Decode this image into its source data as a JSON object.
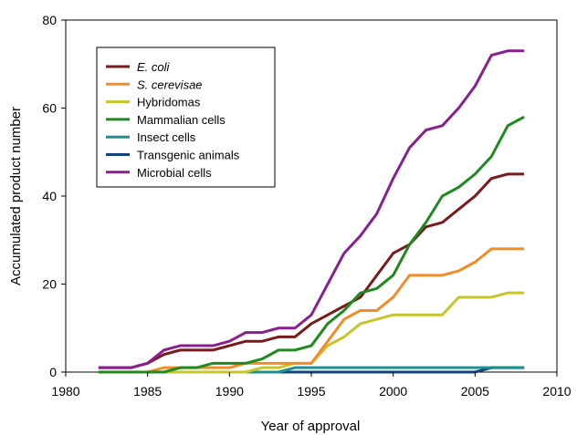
{
  "chart_data": {
    "type": "line",
    "title": "",
    "xlabel": "Year of approval",
    "ylabel": "Accumulated product number",
    "xlim": [
      1980,
      2010
    ],
    "ylim": [
      0,
      80
    ],
    "xticks": [
      "1980",
      "1985",
      "1990",
      "1995",
      "2000",
      "2005",
      "2010"
    ],
    "yticks": [
      "0",
      "20",
      "40",
      "60",
      "80"
    ],
    "grid": false,
    "legend_position": "top-left",
    "x": [
      1982,
      1983,
      1984,
      1985,
      1986,
      1987,
      1988,
      1989,
      1990,
      1991,
      1992,
      1993,
      1994,
      1995,
      1996,
      1997,
      1998,
      1999,
      2000,
      2001,
      2002,
      2003,
      2004,
      2005,
      2006,
      2007,
      2008
    ],
    "series": [
      {
        "name": "E. coli",
        "italic": true,
        "color": "#7b1a1a",
        "values": [
          1,
          1,
          1,
          2,
          4,
          5,
          5,
          5,
          6,
          7,
          7,
          8,
          8,
          11,
          13,
          15,
          17,
          22,
          27,
          29,
          33,
          34,
          37,
          40,
          44,
          45,
          45
        ]
      },
      {
        "name": "S. cerevisae",
        "italic": true,
        "color": "#f28c28",
        "values": [
          0,
          0,
          0,
          0,
          1,
          1,
          1,
          1,
          1,
          2,
          2,
          2,
          2,
          2,
          7,
          12,
          14,
          14,
          17,
          22,
          22,
          22,
          23,
          25,
          28,
          28,
          28
        ]
      },
      {
        "name": "Hybridomas",
        "italic": false,
        "color": "#c6c62a",
        "values": [
          0,
          0,
          0,
          0,
          0,
          0,
          0,
          0,
          0,
          0,
          1,
          1,
          2,
          2,
          6,
          8,
          11,
          12,
          13,
          13,
          13,
          13,
          17,
          17,
          17,
          18,
          18
        ]
      },
      {
        "name": "Mammalian cells",
        "italic": false,
        "color": "#1f8a1f",
        "values": [
          0,
          0,
          0,
          0,
          0,
          1,
          1,
          2,
          2,
          2,
          3,
          5,
          5,
          6,
          11,
          14,
          18,
          19,
          22,
          29,
          34,
          40,
          42,
          45,
          49,
          56,
          58
        ]
      },
      {
        "name": "Insect cells",
        "italic": false,
        "color": "#1f8f8f",
        "values": [
          0,
          0,
          0,
          0,
          0,
          0,
          0,
          0,
          0,
          0,
          0,
          0,
          1,
          1,
          1,
          1,
          1,
          1,
          1,
          1,
          1,
          1,
          1,
          1,
          1,
          1,
          1
        ]
      },
      {
        "name": "Transgenic animals",
        "italic": false,
        "color": "#12427a",
        "values": [
          0,
          0,
          0,
          0,
          0,
          0,
          0,
          0,
          0,
          0,
          0,
          0,
          0,
          0,
          0,
          0,
          0,
          0,
          0,
          0,
          0,
          0,
          0,
          0,
          1,
          1,
          1
        ]
      },
      {
        "name": "Microbial cells",
        "italic": false,
        "color": "#8a1f8f",
        "values": [
          1,
          1,
          1,
          2,
          5,
          6,
          6,
          6,
          7,
          9,
          9,
          10,
          10,
          13,
          20,
          27,
          31,
          36,
          44,
          51,
          55,
          56,
          60,
          65,
          72,
          73,
          73
        ]
      }
    ]
  }
}
